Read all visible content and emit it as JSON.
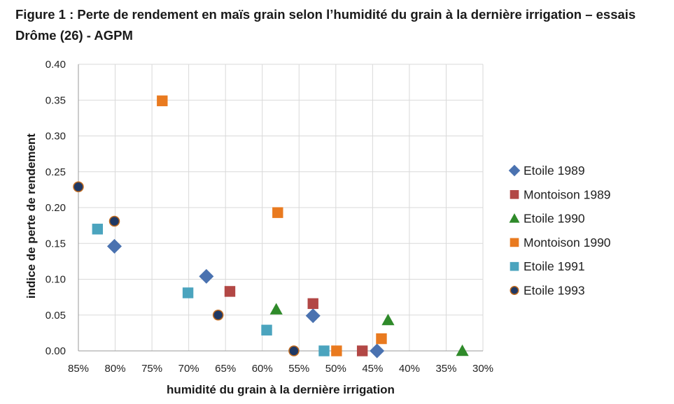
{
  "chart_data": {
    "type": "scatter",
    "title": "Figure 1 : Perte de rendement en maïs grain selon l’humidité du grain à la dernière irrigation – essais Drôme (26) - AGPM",
    "xlabel": "humidité du grain à la dernière irrigation",
    "ylabel": "indice de perte de rendement",
    "xlim": [
      85,
      30
    ],
    "ylim": [
      0,
      0.4
    ],
    "x_reversed": true,
    "x_ticks": [
      "85%",
      "80%",
      "75%",
      "70%",
      "65%",
      "60%",
      "55%",
      "50%",
      "45%",
      "40%",
      "35%",
      "30%"
    ],
    "x_tick_values": [
      85,
      80,
      75,
      70,
      65,
      60,
      55,
      50,
      45,
      40,
      35,
      30
    ],
    "y_ticks": [
      "0.00",
      "0.05",
      "0.10",
      "0.15",
      "0.20",
      "0.25",
      "0.30",
      "0.35",
      "0.40"
    ],
    "y_tick_values": [
      0,
      0.05,
      0.1,
      0.15,
      0.2,
      0.25,
      0.3,
      0.35,
      0.4
    ],
    "grid": true,
    "legend_position": "right",
    "series": [
      {
        "name": "Etoile 1989",
        "marker": "diamond",
        "color": "#4a72b0",
        "x": [
          80.1,
          67.6,
          53.1,
          44.4
        ],
        "y": [
          0.146,
          0.104,
          0.049,
          0.0
        ]
      },
      {
        "name": "Montoison 1989",
        "marker": "square",
        "color": "#b24745",
        "x": [
          64.4,
          53.1,
          46.4
        ],
        "y": [
          0.083,
          0.066,
          0.0
        ]
      },
      {
        "name": "Etoile 1990",
        "marker": "triangle",
        "color": "#2f8a2a",
        "x": [
          58.1,
          42.9,
          32.8
        ],
        "y": [
          0.058,
          0.043,
          0.0
        ]
      },
      {
        "name": "Montoison 1990",
        "marker": "square",
        "color": "#e97a1f",
        "x": [
          73.6,
          57.9,
          49.9,
          43.8
        ],
        "y": [
          0.349,
          0.193,
          0.0,
          0.017
        ]
      },
      {
        "name": "Etoile 1991",
        "marker": "square",
        "color": "#4ba4be",
        "x": [
          82.4,
          70.1,
          59.4,
          51.6
        ],
        "y": [
          0.17,
          0.081,
          0.029,
          0.0
        ]
      },
      {
        "name": "Etoile 1993",
        "marker": "circle",
        "color": "#1f3864",
        "x": [
          85.0,
          80.1,
          66.0,
          55.7
        ],
        "y": [
          0.229,
          0.181,
          0.05,
          0.0
        ]
      }
    ]
  }
}
